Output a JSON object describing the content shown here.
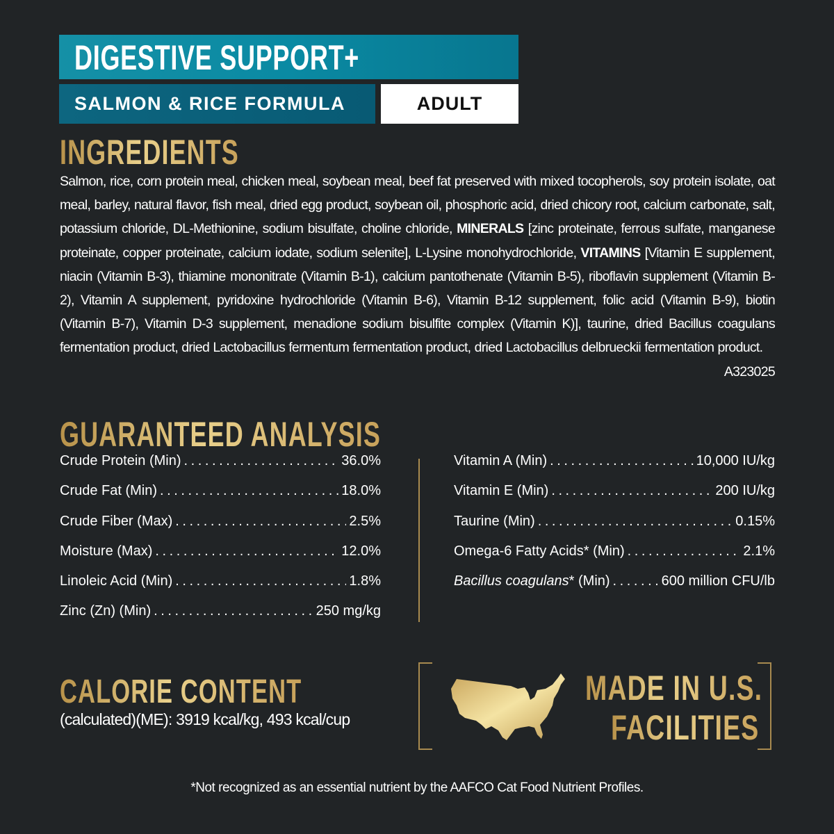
{
  "header": {
    "title": "DIGESTIVE SUPPORT+",
    "formula": "SALMON & RICE FORMULA",
    "life_stage": "ADULT"
  },
  "ingredients": {
    "heading": "INGREDIENTS",
    "text_1": "Salmon, rice, corn protein meal, chicken meal, soybean meal, beef fat preserved with mixed tocopherols, soy protein isolate, oat meal, barley, natural flavor, fish meal, dried egg product, soybean oil, phosphoric acid, dried chicory root, calcium carbonate, salt, potassium chloride, DL-Methionine, sodium bisulfate, choline chloride, ",
    "bold_1": "MINERALS",
    "text_2": " [zinc proteinate, ferrous sulfate, manganese proteinate, copper proteinate, calcium iodate, sodium selenite], L-Lysine monohydrochloride, ",
    "bold_2": "VITAMINS",
    "text_3": " [Vitamin E supplement, niacin (Vitamin B-3), thiamine mononitrate (Vitamin B-1), calcium pantothenate (Vitamin B-5), riboflavin supplement (Vitamin B-2), Vitamin A supplement, pyridoxine hydrochloride (Vitamin B-6), Vitamin B-12 supplement, folic acid (Vitamin B-9), biotin (Vitamin B-7), Vitamin D-3 supplement, menadione sodium bisulfite complex (Vitamin K)], taurine, dried Bacillus coagulans fermentation product, dried Lactobacillus fermentum fermentation product, dried Lactobacillus delbrueckii fermentation product.",
    "code": "A323025"
  },
  "analysis": {
    "heading": "GUARANTEED ANALYSIS",
    "left": [
      {
        "label": "Crude Protein (Min)",
        "value": "36.0%"
      },
      {
        "label": "Crude Fat (Min)",
        "value": "18.0%"
      },
      {
        "label": "Crude Fiber (Max)",
        "value": "2.5%"
      },
      {
        "label": "Moisture (Max)",
        "value": "12.0%"
      },
      {
        "label": "Linoleic Acid (Min)",
        "value": "1.8%"
      },
      {
        "label": "Zinc (Zn) (Min)",
        "value": "250 mg/kg"
      }
    ],
    "right": [
      {
        "label": "Vitamin A (Min)",
        "value": "10,000 IU/kg"
      },
      {
        "label": "Vitamin E (Min)",
        "value": "200 IU/kg"
      },
      {
        "label": "Taurine (Min)",
        "value": "0.15%"
      },
      {
        "label": "Omega-6 Fatty Acids* (Min)",
        "value": "2.1%"
      },
      {
        "label_italic": "Bacillus coagulans",
        "label": "* (Min)",
        "value": "600 million CFU/lb"
      }
    ]
  },
  "calorie": {
    "heading": "CALORIE CONTENT",
    "text": "(calculated)(ME): 3919 kcal/kg, 493 kcal/cup"
  },
  "badge": {
    "line1": "MADE IN U.S.",
    "line2": "FACILITIES",
    "icon": "usa-map-icon"
  },
  "footnote": "*Not recognized as an essential nutrient by the AAFCO Cat Food Nutrient Profiles.",
  "colors": {
    "background": "#212426",
    "teal": "#0a8aa3",
    "dark_teal": "#085a74",
    "gold": "#d4b46a"
  }
}
